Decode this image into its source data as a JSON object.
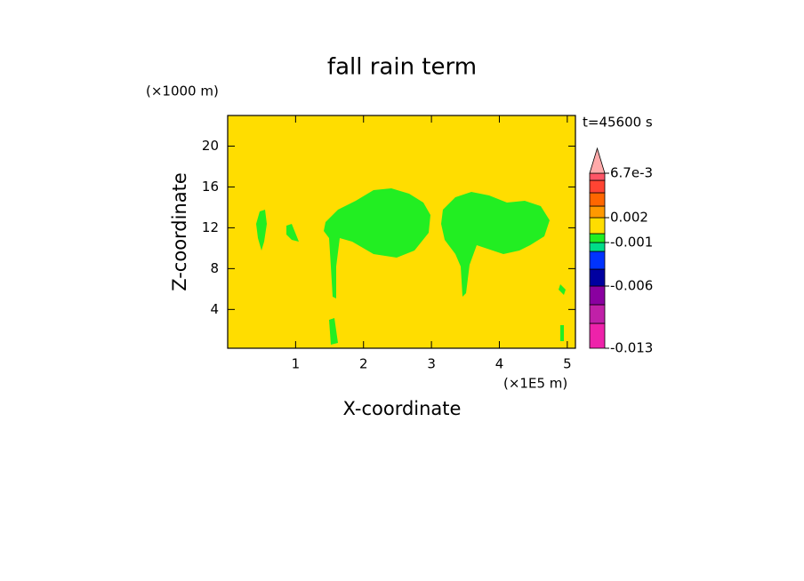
{
  "chart_data": {
    "type": "contour",
    "title": "fall rain term",
    "x_label": "X-coordinate",
    "y_label": "Z-coordinate",
    "x_unit": "(×1E5 m)",
    "y_unit": "(×1000 m)",
    "time_label": "t=45600 s",
    "xlim": [
      0,
      5.12
    ],
    "ylim": [
      0.2,
      23
    ],
    "xticks": [
      1,
      2,
      3,
      4,
      5
    ],
    "yticks": [
      4,
      8,
      12,
      16,
      20
    ],
    "background": "#ffdd00",
    "colorbar": {
      "colors": [
        "#ee22aa",
        "#c020a8",
        "#8a00a0",
        "#0000a0",
        "#0033ff",
        "#00dd88",
        "#22ee22",
        "#ffdd00",
        "#ff9900",
        "#ff6600",
        "#ff4433",
        "#ff5566"
      ],
      "extend_color": "#ffaaaa",
      "ticks": [
        -0.013,
        -0.006,
        -0.001,
        0.002,
        {
          "value": 0.0067,
          "label": "6.7e-3"
        }
      ]
    }
  }
}
